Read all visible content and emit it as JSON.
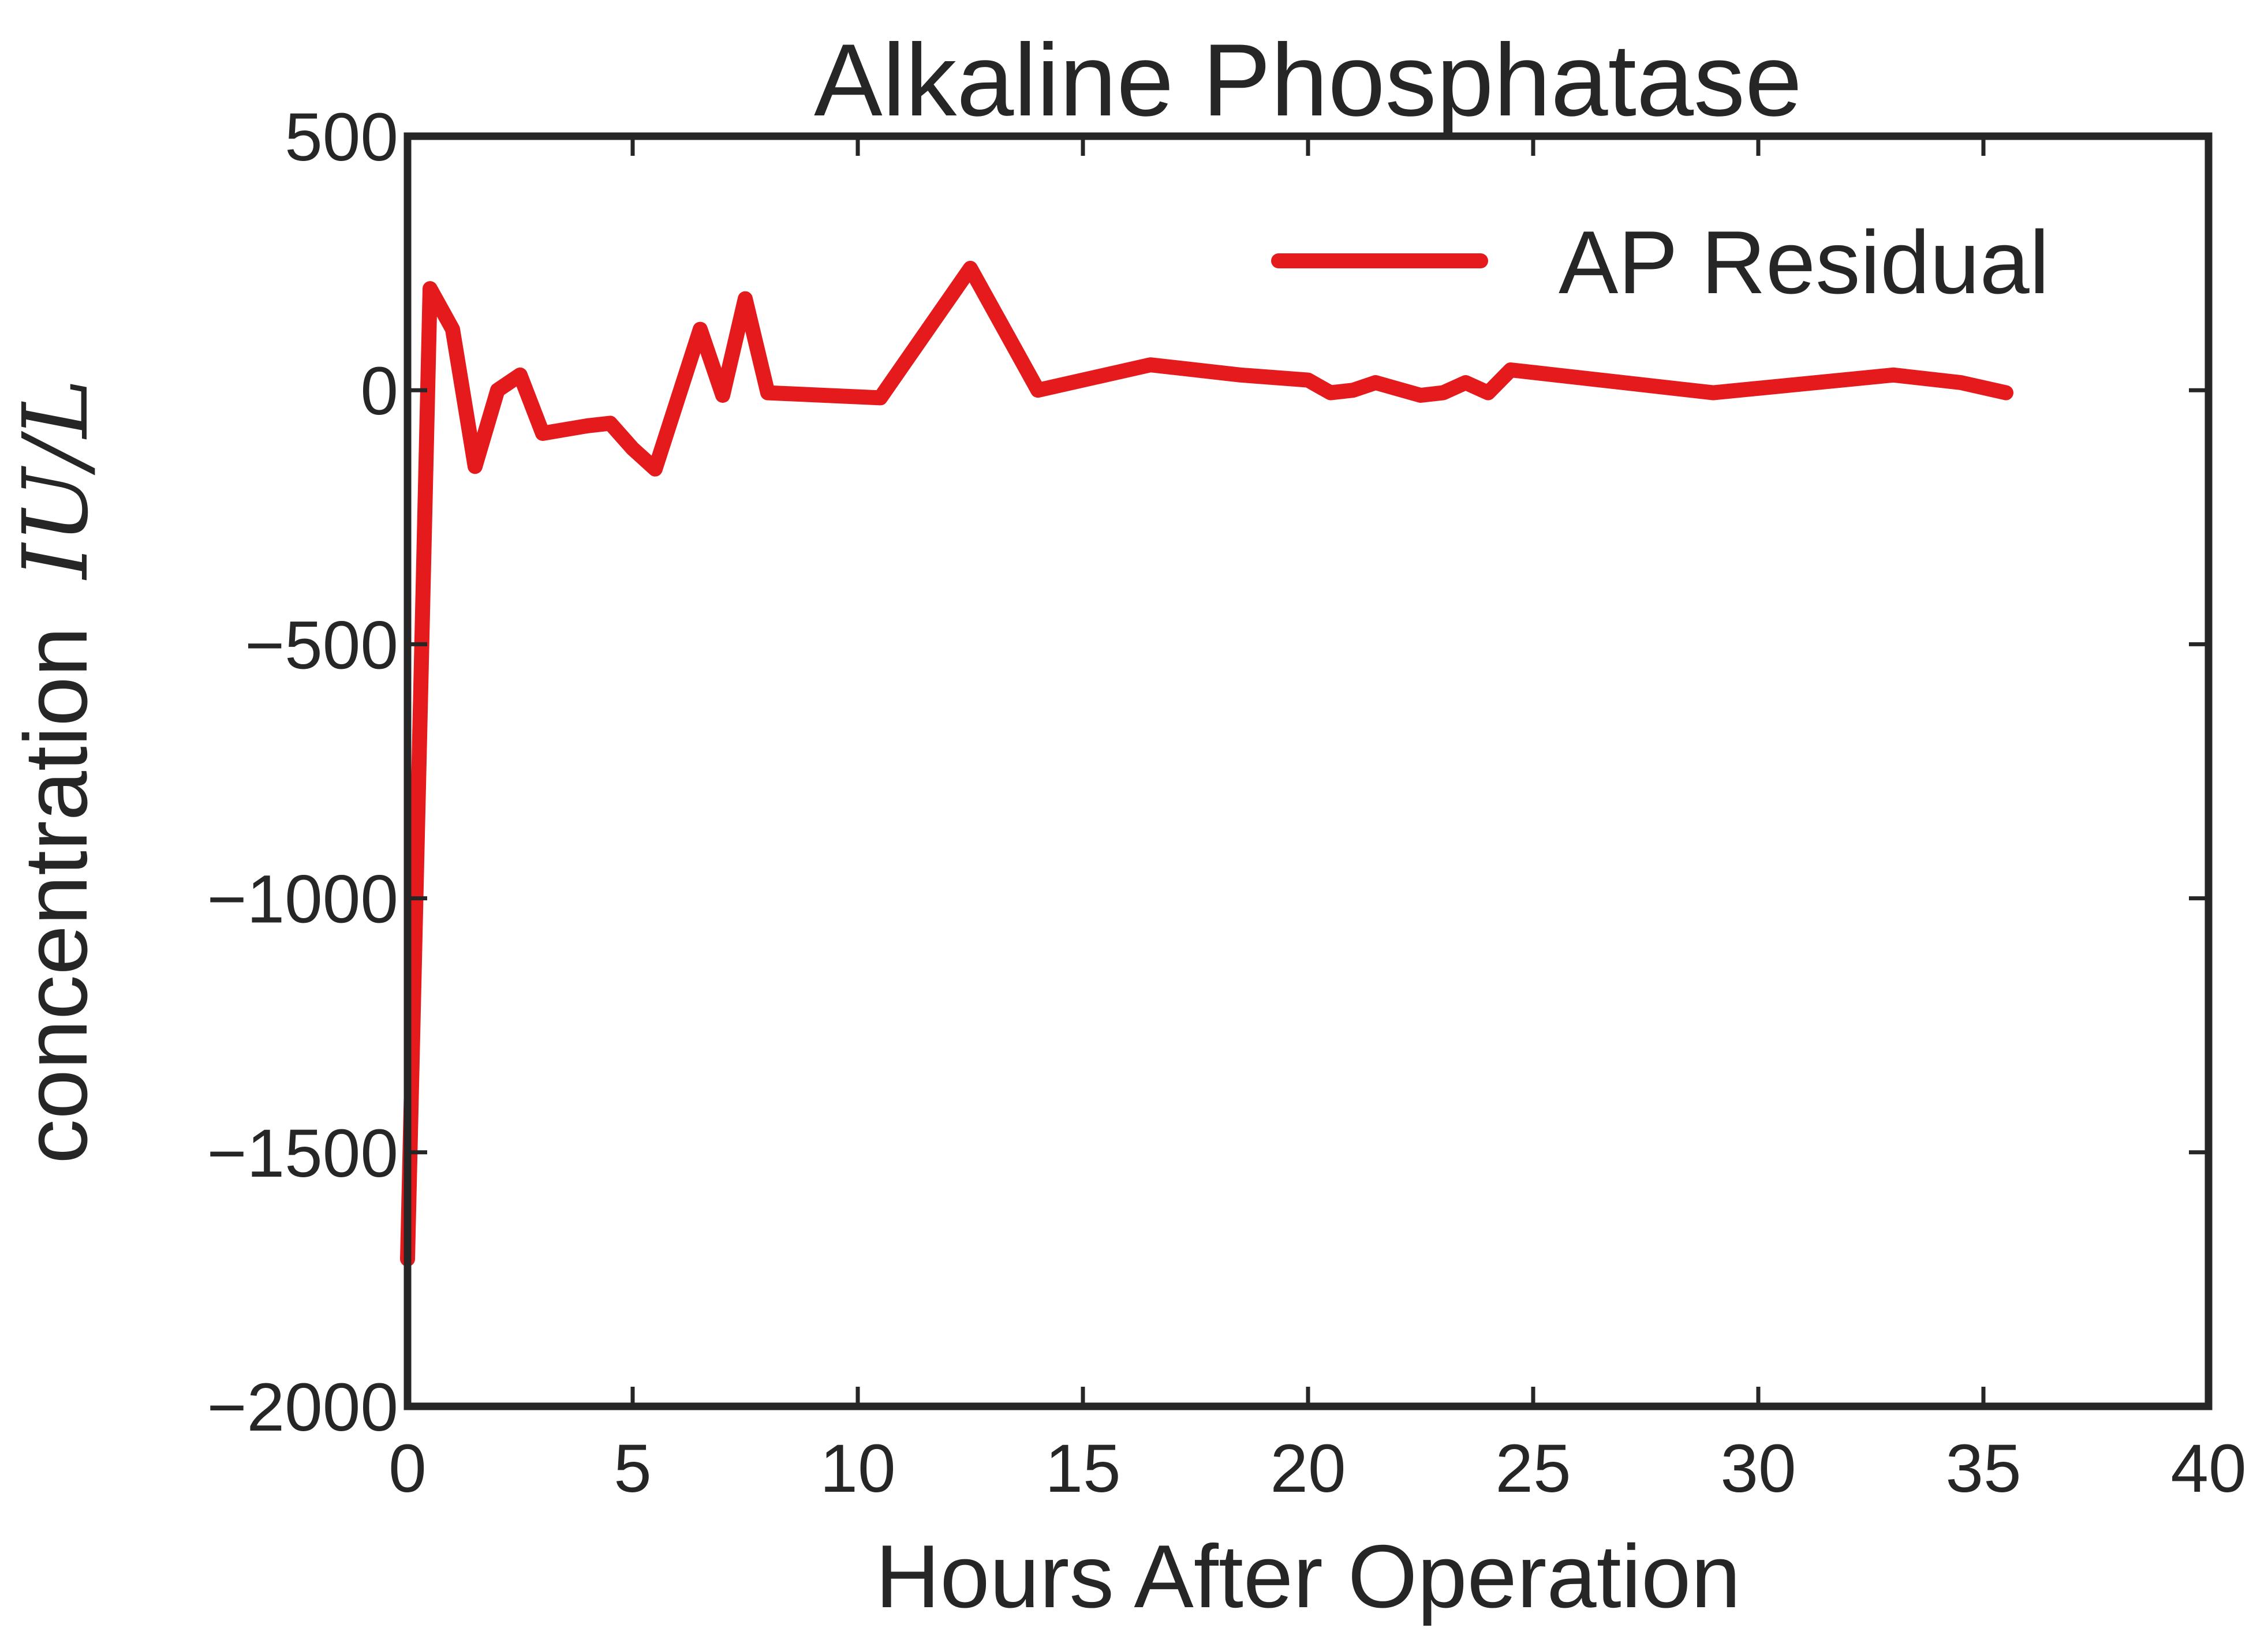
{
  "chart_data": {
    "type": "line",
    "title": "Alkaline Phosphatase",
    "xlabel": "Hours After Operation",
    "ylabel": "concentration",
    "ylabel_math": "IU/L",
    "xlim": [
      0,
      40
    ],
    "ylim": [
      -2000,
      500
    ],
    "xticks": [
      0,
      5,
      10,
      15,
      20,
      25,
      30,
      35,
      40
    ],
    "yticks": [
      500,
      0,
      -500,
      -1000,
      -1500,
      -2000
    ],
    "grid": false,
    "legend_position": "top-right",
    "series": [
      {
        "name": "AP Residual",
        "color": "#e41a1c",
        "x": [
          0,
          0.5,
          0.75,
          1,
          1.5,
          2,
          2.5,
          3,
          4,
          4.5,
          5,
          5.5,
          6.5,
          7,
          7.5,
          8,
          10.5,
          12.5,
          14,
          16.5,
          17,
          18.5,
          20,
          20.5,
          21,
          21.5,
          22.5,
          23,
          23.5,
          24,
          24.5,
          29,
          33,
          34.5,
          35.5
        ],
        "y": [
          -1710,
          200,
          160,
          120,
          -150,
          0,
          30,
          -85,
          -70,
          -65,
          -115,
          -155,
          120,
          -10,
          180,
          -5,
          -15,
          240,
          0,
          50,
          45,
          30,
          20,
          -5,
          0,
          15,
          -10,
          -5,
          15,
          -5,
          40,
          -5,
          30,
          15,
          -5
        ]
      }
    ]
  }
}
